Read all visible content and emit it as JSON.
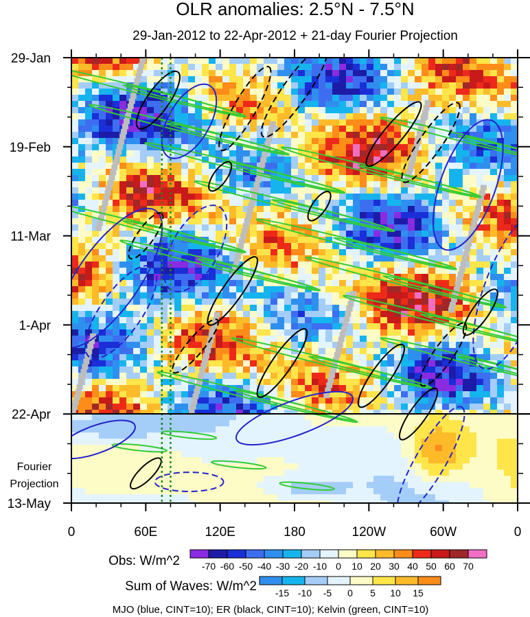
{
  "chart_data": {
    "type": "heatmap",
    "title": "OLR anomalies: 2.5°N - 7.5°N",
    "subtitle": "29-Jan-2012 to 22-Apr-2012 + 21-day Fourier Projection",
    "x_axis": {
      "ticks": [
        "0",
        "60E",
        "120E",
        "180",
        "120W",
        "60W",
        "0"
      ],
      "longitudes": [
        0,
        60,
        120,
        180,
        240,
        300,
        360
      ],
      "range": [
        0,
        360
      ]
    },
    "y_axis": {
      "ticks": [
        "29-Jan",
        "19-Feb",
        "11-Mar",
        "1-Apr",
        "22-Apr",
        "13-May"
      ],
      "days_from_start": [
        0,
        21,
        42,
        63,
        84,
        105
      ],
      "range": [
        0,
        105
      ],
      "direction": "time increases downward"
    },
    "projection_label": [
      "Fourier",
      "Projection"
    ],
    "projection_start_day": 84,
    "reference_lines_lon": [
      73,
      80
    ],
    "obs_colorbar": {
      "label": "Obs: W/m^2",
      "levels": [
        "-70",
        "-60",
        "-50",
        "-40",
        "-30",
        "-20",
        "-10",
        "0",
        "10",
        "20",
        "30",
        "40",
        "50",
        "60",
        "70"
      ],
      "colors": [
        "#8a2be2",
        "#1c1ca8",
        "#1a2fd8",
        "#3d6ef0",
        "#2f8fee",
        "#16b4ee",
        "#a4cdf8",
        "#e4f4ff",
        "#fdfbc6",
        "#fde54a",
        "#fdbb2a",
        "#fd8c19",
        "#ed2a1a",
        "#c81a1a",
        "#a02828",
        "#f06fc4"
      ]
    },
    "waves_colorbar": {
      "label": "Sum of Waves: W/m^2",
      "levels": [
        "-15",
        "-10",
        "-5",
        "0",
        "5",
        "10",
        "15"
      ],
      "colors": [
        "#2f8fee",
        "#16b4ee",
        "#a4cdf8",
        "#e4f4ff",
        "#fdfbc6",
        "#fde54a",
        "#fdbb2a",
        "#fd8c19"
      ]
    },
    "contours": [
      {
        "name": "MJO",
        "color": "blue",
        "cint": 10
      },
      {
        "name": "ER",
        "color": "black",
        "cint": 10
      },
      {
        "name": "Kelvin",
        "color": "green",
        "cint": 10
      }
    ],
    "footer": "MJO (blue, CINT=10); ER (black, CINT=10); Kelvin (green, CINT=10)"
  }
}
